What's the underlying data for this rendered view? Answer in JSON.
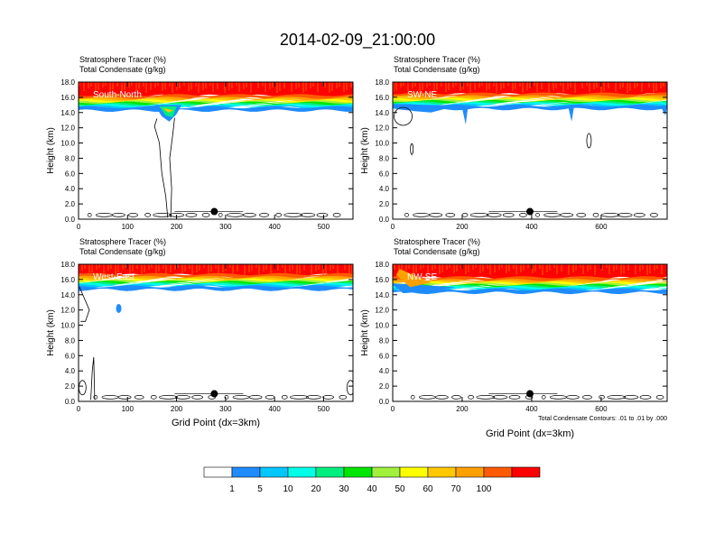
{
  "title": "2014-02-09_21:00:00",
  "colors": {
    "bins": [
      "#ffffff",
      "#1e8cff",
      "#00c8ff",
      "#00ffe6",
      "#00ee80",
      "#00e600",
      "#a0f03c",
      "#ffff00",
      "#ffc800",
      "#ffa000",
      "#ff5a00",
      "#ff0000"
    ],
    "black": "#000000"
  },
  "colorbar": {
    "labels": [
      "1",
      "5",
      "10",
      "20",
      "30",
      "40",
      "50",
      "60",
      "70",
      "100"
    ]
  },
  "panels": [
    {
      "header_line1": "Stratosphere Tracer   (%)",
      "header_line2": "Total Condensate   (g/kg)",
      "label": "South-North",
      "ylabel": "Height (km)",
      "xlabel": "",
      "footnote": "",
      "xmax": 560,
      "xticks": [
        "0",
        "100",
        "200",
        "300",
        "400",
        "500"
      ],
      "yticks": [
        "0.0",
        "2.0",
        "4.0",
        "6.0",
        "8.0",
        "10.0",
        "12.0",
        "14.0",
        "16.0",
        "18.0"
      ],
      "marker_x": 277,
      "marker_y": 1.0,
      "blue_base_km": 14.6
    },
    {
      "header_line1": "Stratosphere Tracer   (%)",
      "header_line2": "Total Condensate   (g/kg)",
      "label": "SW-NE",
      "ylabel": "Height (km)",
      "xlabel": "",
      "footnote": "",
      "xmax": 790,
      "xticks": [
        "0",
        "200",
        "400",
        "600"
      ],
      "yticks": [
        "0.0",
        "2.0",
        "4.0",
        "6.0",
        "8.0",
        "10.0",
        "12.0",
        "14.0",
        "16.0",
        "18.0"
      ],
      "marker_x": 395,
      "marker_y": 1.0,
      "blue_base_km": 14.8
    },
    {
      "header_line1": "Stratosphere Tracer   (%)",
      "header_line2": "Total Condensate   (g/kg)",
      "label": "West-East",
      "ylabel": "Height (km)",
      "xlabel": "Grid Point (dx=3km)",
      "footnote": "",
      "xmax": 560,
      "xticks": [
        "0",
        "100",
        "200",
        "300",
        "400",
        "500"
      ],
      "yticks": [
        "0.0",
        "2.0",
        "4.0",
        "6.0",
        "8.0",
        "10.0",
        "12.0",
        "14.0",
        "16.0",
        "18.0"
      ],
      "marker_x": 277,
      "marker_y": 1.0,
      "blue_base_km": 15.0
    },
    {
      "header_line1": "Stratosphere Tracer   (%)",
      "header_line2": "Total Condensate   (g/kg)",
      "label": "NW-SE",
      "ylabel": "Height (km)",
      "xlabel": "Grid Point (dx=3km)",
      "footnote": "Total Condensate Contours: .01 to .01 by .000",
      "xmax": 790,
      "xticks": [
        "0",
        "200",
        "400",
        "600"
      ],
      "yticks": [
        "0.0",
        "2.0",
        "4.0",
        "6.0",
        "8.0",
        "10.0",
        "12.0",
        "14.0",
        "16.0",
        "18.0"
      ],
      "marker_x": 395,
      "marker_y": 1.0,
      "blue_base_km": 14.6
    }
  ],
  "chart_data": [
    {
      "type": "heatmap",
      "title": "South-North",
      "series_names": [
        "Stratosphere Tracer (%)",
        "Total Condensate (g/kg)"
      ],
      "xlabel": "",
      "ylabel": "Height (km)",
      "xlim": [
        0,
        560
      ],
      "ylim": [
        0,
        18
      ],
      "contour_levels": [
        1,
        5,
        10,
        20,
        30,
        40,
        50,
        60,
        70,
        100
      ],
      "tracer_layer_base_km": 14.6,
      "tracer_full_above_km": 16.2
    },
    {
      "type": "heatmap",
      "title": "SW-NE",
      "series_names": [
        "Stratosphere Tracer (%)",
        "Total Condensate (g/kg)"
      ],
      "xlabel": "",
      "ylabel": "Height (km)",
      "xlim": [
        0,
        790
      ],
      "ylim": [
        0,
        18
      ],
      "contour_levels": [
        1,
        5,
        10,
        20,
        30,
        40,
        50,
        60,
        70,
        100
      ],
      "tracer_layer_base_km": 14.8,
      "tracer_full_above_km": 16.2
    },
    {
      "type": "heatmap",
      "title": "West-East",
      "series_names": [
        "Stratosphere Tracer (%)",
        "Total Condensate (g/kg)"
      ],
      "xlabel": "Grid Point (dx=3km)",
      "ylabel": "Height (km)",
      "xlim": [
        0,
        560
      ],
      "ylim": [
        0,
        18
      ],
      "contour_levels": [
        1,
        5,
        10,
        20,
        30,
        40,
        50,
        60,
        70,
        100
      ],
      "tracer_layer_base_km": 15.0,
      "tracer_full_above_km": 16.4
    },
    {
      "type": "heatmap",
      "title": "NW-SE",
      "series_names": [
        "Stratosphere Tracer (%)",
        "Total Condensate (g/kg)"
      ],
      "xlabel": "Grid Point (dx=3km)",
      "ylabel": "Height (km)",
      "xlim": [
        0,
        790
      ],
      "ylim": [
        0,
        18
      ],
      "contour_levels": [
        1,
        5,
        10,
        20,
        30,
        40,
        50,
        60,
        70,
        100
      ],
      "tracer_layer_base_km": 14.6,
      "tracer_full_above_km": 16.2
    }
  ]
}
